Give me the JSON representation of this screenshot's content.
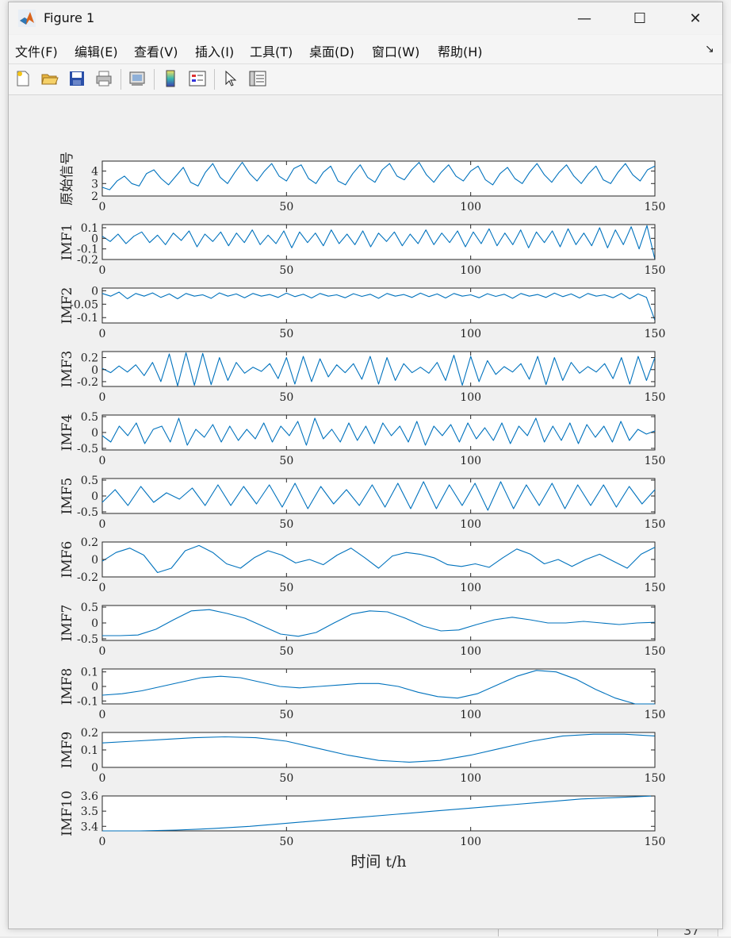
{
  "window": {
    "title": "Figure 1",
    "minimize_glyph": "—",
    "maximize_glyph": "☐",
    "close_glyph": "✕",
    "background_number": "37"
  },
  "menu": [
    {
      "label": "文件(F)"
    },
    {
      "label": "编辑(E)"
    },
    {
      "label": "查看(V)"
    },
    {
      "label": "插入(I)"
    },
    {
      "label": "工具(T)"
    },
    {
      "label": "桌面(D)"
    },
    {
      "label": "窗口(W)"
    },
    {
      "label": "帮助(H)"
    }
  ],
  "toolbar": [
    {
      "icon": "new-figure-icon"
    },
    {
      "icon": "open-file-icon"
    },
    {
      "icon": "save-icon"
    },
    {
      "icon": "print-icon"
    },
    {
      "icon": "print-preview-icon"
    },
    {
      "icon": "colorbar-icon"
    },
    {
      "icon": "legend-icon"
    },
    {
      "icon": "pointer-icon"
    },
    {
      "icon": "property-editor-icon"
    }
  ],
  "colors": {
    "line": "#0072bd",
    "axes_bg": "#ffffff",
    "figure_bg": "#f0f0f0"
  },
  "chart_data": [
    {
      "type": "line",
      "ylabel": "原始信号",
      "xlim": [
        0,
        150
      ],
      "x_ticks": [
        "0",
        "50",
        "100",
        "150"
      ],
      "y_ticks": [
        "2",
        "3",
        "4"
      ],
      "ylim": [
        2,
        4.8
      ],
      "series": [
        {
          "values": [
            2.7,
            2.5,
            3.2,
            3.6,
            3.0,
            2.8,
            3.8,
            4.1,
            3.4,
            2.9,
            3.6,
            4.3,
            3.1,
            2.8,
            3.9,
            4.6,
            3.5,
            3.0,
            3.9,
            4.7,
            3.8,
            3.2,
            4.0,
            4.6,
            3.6,
            3.2,
            4.2,
            4.5,
            3.4,
            3.0,
            3.9,
            4.4,
            3.2,
            2.9,
            3.8,
            4.5,
            3.5,
            3.1,
            4.1,
            4.6,
            3.6,
            3.3,
            4.1,
            4.7,
            3.7,
            3.1,
            3.9,
            4.5,
            3.6,
            3.2,
            4.0,
            4.4,
            3.3,
            2.9,
            3.8,
            4.3,
            3.4,
            3.0,
            3.9,
            4.6,
            3.7,
            3.1,
            3.9,
            4.5,
            3.6,
            3.0,
            3.8,
            4.4,
            3.3,
            3.0,
            3.9,
            4.6,
            3.7,
            3.2,
            4.1,
            4.4
          ]
        }
      ]
    },
    {
      "type": "line",
      "ylabel": "IMF1",
      "xlim": [
        0,
        150
      ],
      "x_ticks": [
        "0",
        "50",
        "100",
        "150"
      ],
      "y_ticks": [
        "0.1",
        "0",
        "-0.1",
        "-0.2"
      ],
      "ylim": [
        -0.2,
        0.13
      ],
      "series": [
        {
          "values": [
            0.02,
            -0.03,
            0.04,
            -0.05,
            0.02,
            0.06,
            -0.04,
            0.03,
            -0.06,
            0.05,
            -0.02,
            0.07,
            -0.08,
            0.04,
            -0.03,
            0.06,
            -0.07,
            0.05,
            -0.04,
            0.08,
            -0.06,
            0.03,
            -0.05,
            0.07,
            -0.09,
            0.06,
            -0.04,
            0.05,
            -0.07,
            0.08,
            -0.05,
            0.04,
            -0.06,
            0.07,
            -0.08,
            0.05,
            -0.03,
            0.06,
            -0.07,
            0.04,
            -0.05,
            0.08,
            -0.06,
            0.05,
            -0.04,
            0.07,
            -0.08,
            0.06,
            -0.05,
            0.09,
            -0.07,
            0.05,
            -0.06,
            0.08,
            -0.09,
            0.06,
            -0.04,
            0.07,
            -0.08,
            0.09,
            -0.06,
            0.05,
            -0.07,
            0.1,
            -0.09,
            0.08,
            -0.06,
            0.11,
            -0.1,
            0.12,
            -0.2
          ]
        }
      ]
    },
    {
      "type": "line",
      "ylabel": "IMF2",
      "xlim": [
        0,
        150
      ],
      "x_ticks": [
        "0",
        "50",
        "100",
        "150"
      ],
      "y_ticks": [
        "0",
        "-0.05",
        "-0.1"
      ],
      "ylim": [
        -0.12,
        0.01
      ],
      "series": [
        {
          "values": [
            -0.01,
            -0.02,
            -0.005,
            -0.03,
            -0.01,
            -0.02,
            -0.008,
            -0.025,
            -0.012,
            -0.03,
            -0.01,
            -0.02,
            -0.015,
            -0.028,
            -0.008,
            -0.02,
            -0.012,
            -0.026,
            -0.01,
            -0.02,
            -0.014,
            -0.025,
            -0.009,
            -0.022,
            -0.013,
            -0.027,
            -0.01,
            -0.02,
            -0.015,
            -0.026,
            -0.011,
            -0.021,
            -0.013,
            -0.028,
            -0.01,
            -0.02,
            -0.014,
            -0.025,
            -0.009,
            -0.022,
            -0.012,
            -0.027,
            -0.01,
            -0.02,
            -0.015,
            -0.026,
            -0.011,
            -0.021,
            -0.013,
            -0.028,
            -0.01,
            -0.02,
            -0.014,
            -0.025,
            -0.009,
            -0.022,
            -0.012,
            -0.027,
            -0.01,
            -0.02,
            -0.015,
            -0.026,
            -0.01,
            -0.03,
            -0.012,
            -0.025,
            -0.11
          ]
        }
      ]
    },
    {
      "type": "line",
      "ylabel": "IMF3",
      "xlim": [
        0,
        150
      ],
      "x_ticks": [
        "0",
        "50",
        "100",
        "150"
      ],
      "y_ticks": [
        "0.2",
        "0",
        "-0.2"
      ],
      "ylim": [
        -0.28,
        0.3
      ],
      "series": [
        {
          "values": [
            0.02,
            -0.05,
            0.06,
            -0.04,
            0.08,
            -0.1,
            0.12,
            -0.2,
            0.26,
            -0.27,
            0.28,
            -0.26,
            0.27,
            -0.25,
            0.2,
            -0.18,
            0.12,
            -0.06,
            0.04,
            -0.03,
            0.1,
            -0.15,
            0.2,
            -0.24,
            0.22,
            -0.2,
            0.18,
            -0.12,
            0.08,
            -0.05,
            0.1,
            -0.16,
            0.22,
            -0.24,
            0.2,
            -0.18,
            0.1,
            -0.05,
            0.04,
            -0.06,
            0.12,
            -0.18,
            0.24,
            -0.26,
            0.22,
            -0.2,
            0.15,
            -0.08,
            0.05,
            -0.04,
            0.1,
            -0.16,
            0.22,
            -0.25,
            0.2,
            -0.18,
            0.12,
            -0.06,
            0.05,
            -0.04,
            0.1,
            -0.15,
            0.2,
            -0.24,
            0.22,
            -0.18,
            0.2
          ]
        }
      ]
    },
    {
      "type": "line",
      "ylabel": "IMF4",
      "xlim": [
        0,
        150
      ],
      "x_ticks": [
        "0",
        "50",
        "100",
        "150"
      ],
      "y_ticks": [
        "0.5",
        "0",
        "-0.5"
      ],
      "ylim": [
        -0.55,
        0.55
      ],
      "series": [
        {
          "values": [
            -0.1,
            -0.3,
            0.2,
            -0.1,
            0.3,
            -0.35,
            0.1,
            0.2,
            -0.3,
            0.45,
            -0.4,
            0.1,
            -0.15,
            0.25,
            -0.3,
            0.2,
            -0.25,
            0.1,
            -0.2,
            0.3,
            -0.3,
            0.2,
            -0.1,
            0.35,
            -0.4,
            0.45,
            -0.2,
            0.1,
            -0.3,
            0.3,
            -0.25,
            0.2,
            -0.35,
            0.3,
            -0.1,
            0.2,
            -0.3,
            0.35,
            -0.4,
            0.2,
            -0.1,
            0.25,
            -0.3,
            0.3,
            -0.2,
            0.15,
            -0.25,
            0.3,
            -0.35,
            0.2,
            -0.1,
            0.45,
            -0.3,
            0.2,
            -0.25,
            0.3,
            -0.35,
            0.25,
            -0.15,
            0.2,
            -0.3,
            0.35,
            -0.25,
            0.1,
            -0.05,
            0.05
          ]
        }
      ]
    },
    {
      "type": "line",
      "ylabel": "IMF5",
      "xlim": [
        0,
        150
      ],
      "x_ticks": [
        "0",
        "50",
        "100",
        "150"
      ],
      "y_ticks": [
        "0.5",
        "0",
        "-0.5"
      ],
      "ylim": [
        -0.55,
        0.55
      ],
      "series": [
        {
          "values": [
            -0.2,
            0.2,
            -0.3,
            0.3,
            -0.2,
            0.1,
            -0.1,
            0.25,
            -0.3,
            0.35,
            -0.3,
            0.3,
            -0.25,
            0.35,
            -0.35,
            0.4,
            -0.4,
            0.3,
            -0.25,
            0.2,
            -0.3,
            0.35,
            -0.35,
            0.4,
            -0.4,
            0.45,
            -0.4,
            0.35,
            -0.3,
            0.4,
            -0.45,
            0.45,
            -0.4,
            0.35,
            -0.3,
            0.4,
            -0.4,
            0.35,
            -0.3,
            0.35,
            -0.35,
            0.3,
            -0.25,
            0.2
          ]
        }
      ]
    },
    {
      "type": "line",
      "ylabel": "IMF6",
      "xlim": [
        0,
        150
      ],
      "x_ticks": [
        "0",
        "50",
        "100",
        "150"
      ],
      "y_ticks": [
        "0.2",
        "0",
        "-0.2"
      ],
      "ylim": [
        -0.2,
        0.2
      ],
      "series": [
        {
          "values": [
            -0.02,
            0.08,
            0.13,
            0.05,
            -0.15,
            -0.1,
            0.1,
            0.16,
            0.08,
            -0.05,
            -0.1,
            0.02,
            0.1,
            0.05,
            -0.04,
            0.0,
            -0.06,
            0.05,
            0.13,
            0.02,
            -0.1,
            0.04,
            0.08,
            0.06,
            0.02,
            -0.06,
            -0.08,
            -0.05,
            -0.09,
            0.02,
            0.12,
            0.06,
            -0.05,
            0.0,
            -0.08,
            0.0,
            0.06,
            -0.02,
            -0.1,
            0.06,
            0.14
          ]
        }
      ]
    },
    {
      "type": "line",
      "ylabel": "IMF7",
      "xlim": [
        0,
        150
      ],
      "x_ticks": [
        "0",
        "50",
        "100",
        "150"
      ],
      "y_ticks": [
        "0.5",
        "0",
        "-0.5"
      ],
      "ylim": [
        -0.55,
        0.55
      ],
      "series": [
        {
          "values": [
            -0.4,
            -0.4,
            -0.38,
            -0.2,
            0.1,
            0.38,
            0.42,
            0.3,
            0.15,
            -0.1,
            -0.35,
            -0.42,
            -0.3,
            0.0,
            0.28,
            0.38,
            0.35,
            0.15,
            -0.1,
            -0.25,
            -0.22,
            -0.05,
            0.1,
            0.18,
            0.1,
            0.0,
            0.0,
            0.05,
            0.0,
            -0.05,
            0.0,
            0.02
          ]
        }
      ]
    },
    {
      "type": "line",
      "ylabel": "IMF8",
      "xlim": [
        0,
        150
      ],
      "x_ticks": [
        "0",
        "50",
        "100",
        "150"
      ],
      "y_ticks": [
        "0.1",
        "0",
        "-0.1"
      ],
      "ylim": [
        -0.12,
        0.12
      ],
      "series": [
        {
          "values": [
            -0.06,
            -0.05,
            -0.03,
            0.0,
            0.03,
            0.06,
            0.07,
            0.06,
            0.03,
            0.0,
            -0.01,
            0.0,
            0.01,
            0.02,
            0.02,
            0.0,
            -0.04,
            -0.07,
            -0.08,
            -0.05,
            0.01,
            0.07,
            0.11,
            0.1,
            0.05,
            -0.02,
            -0.08,
            -0.12,
            -0.12
          ]
        }
      ]
    },
    {
      "type": "line",
      "ylabel": "IMF9",
      "xlim": [
        0,
        150
      ],
      "x_ticks": [
        "0",
        "50",
        "100",
        "150"
      ],
      "y_ticks": [
        "0.2",
        "0.1",
        "0"
      ],
      "ylim": [
        0,
        0.2
      ],
      "series": [
        {
          "values": [
            0.14,
            0.15,
            0.16,
            0.17,
            0.175,
            0.17,
            0.15,
            0.11,
            0.07,
            0.04,
            0.03,
            0.04,
            0.07,
            0.11,
            0.15,
            0.18,
            0.19,
            0.19,
            0.18
          ]
        }
      ]
    },
    {
      "type": "line",
      "ylabel": "IMF10",
      "xlabel": "时间 t/h",
      "xlim": [
        0,
        150
      ],
      "x_ticks": [
        "0",
        "50",
        "100",
        "150"
      ],
      "y_ticks": [
        "3.6",
        "3.5",
        "3.4"
      ],
      "ylim": [
        3.37,
        3.6
      ],
      "series": [
        {
          "values": [
            3.37,
            3.37,
            3.375,
            3.385,
            3.4,
            3.42,
            3.44,
            3.46,
            3.48,
            3.5,
            3.52,
            3.54,
            3.56,
            3.58,
            3.59,
            3.6
          ]
        }
      ]
    }
  ]
}
